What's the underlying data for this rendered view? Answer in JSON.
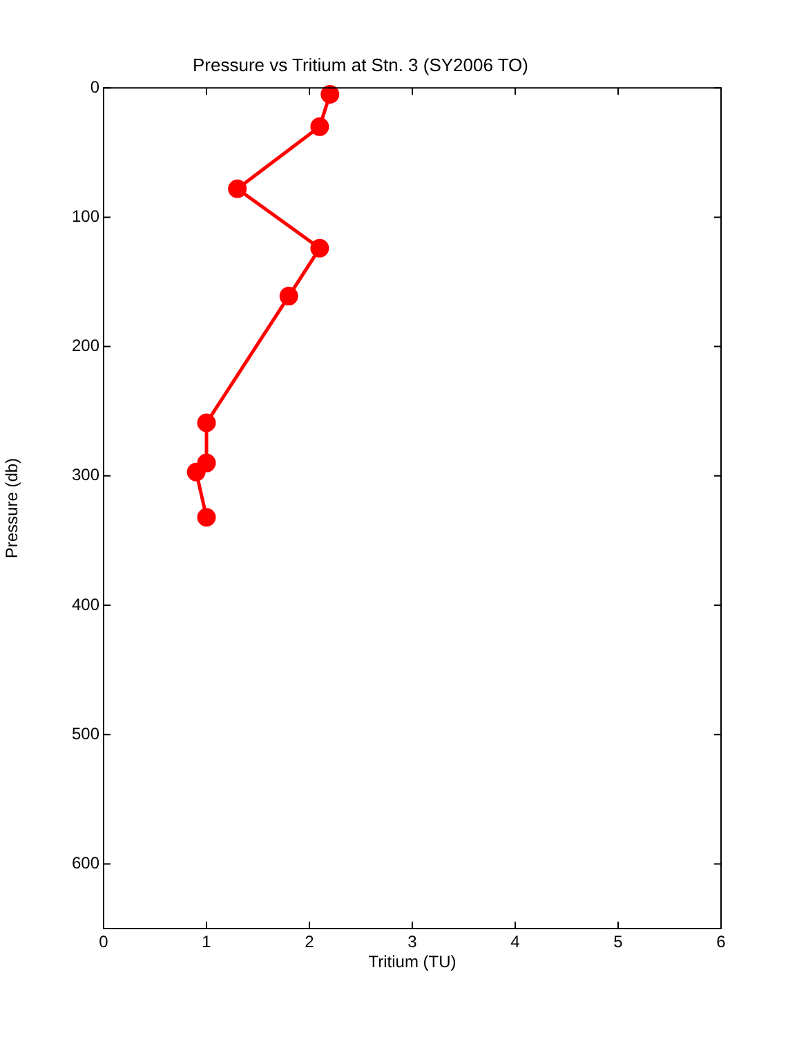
{
  "chart_data": {
    "type": "line",
    "title": "Pressure vs Tritium at Stn. 3 (SY2006 TO)",
    "xlabel": "Tritium (TU)",
    "ylabel": "Pressure (db)",
    "series": [
      {
        "color": "#ff0000",
        "x": [
          2.2,
          2.1,
          1.3,
          2.1,
          1.8,
          1.0,
          1.0,
          0.9,
          1.0
        ],
        "values": [
          5,
          30,
          78,
          124,
          161,
          259,
          290,
          297,
          332
        ]
      }
    ],
    "xlim": [
      0,
      6
    ],
    "xticks": [
      0,
      1,
      2,
      3,
      4,
      5,
      6
    ],
    "ylim": [
      650,
      0
    ],
    "yticks": [
      0,
      100,
      200,
      300,
      400,
      500,
      600
    ],
    "grid": false,
    "legend": false,
    "marker": "circle",
    "line_style": "solid"
  }
}
